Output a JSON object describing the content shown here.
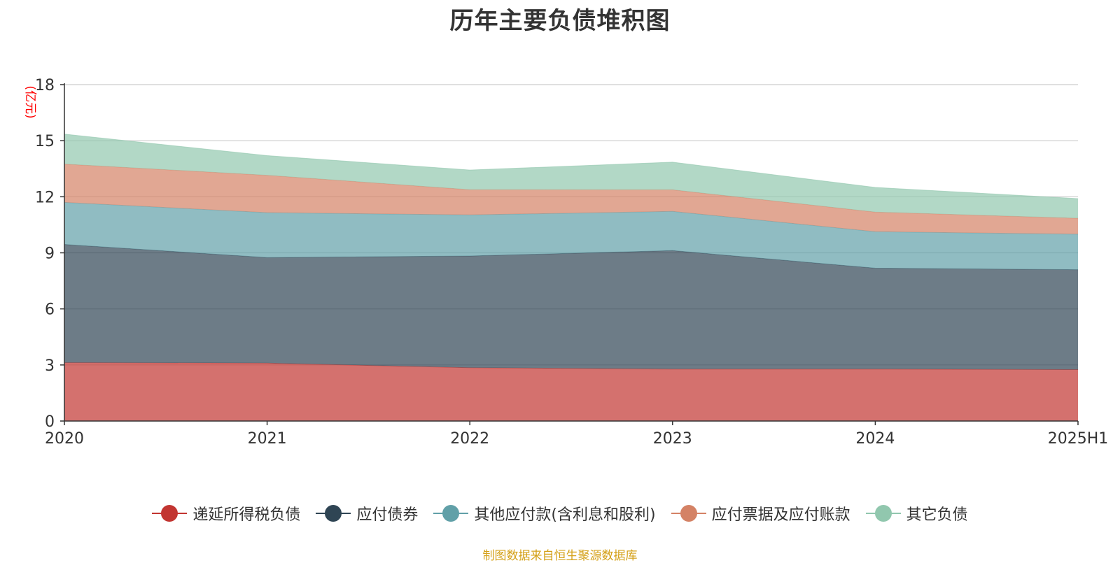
{
  "chart_data": {
    "type": "area",
    "stacked": true,
    "title": "历年主要负债堆积图",
    "unit_label": "(亿元)",
    "categories": [
      "2020",
      "2021",
      "2022",
      "2023",
      "2024",
      "2025H1"
    ],
    "ylim": [
      0,
      18
    ],
    "yticks": [
      0,
      3,
      6,
      9,
      12,
      15,
      18
    ],
    "grid": true,
    "legend_position": "bottom",
    "series": [
      {
        "name": "递延所得税负债",
        "color": "#c23531",
        "values": [
          3.12,
          3.1,
          2.85,
          2.78,
          2.78,
          2.75
        ]
      },
      {
        "name": "应付债券",
        "color": "#2f4554",
        "values": [
          6.33,
          5.65,
          5.98,
          6.34,
          5.4,
          5.35
        ]
      },
      {
        "name": "其他应付款(含利息和股利)",
        "color": "#61a0a8",
        "values": [
          2.25,
          2.4,
          2.2,
          2.1,
          1.95,
          1.9
        ]
      },
      {
        "name": "应付票据及应付账款",
        "color": "#d48265",
        "values": [
          2.05,
          2.0,
          1.35,
          1.15,
          1.05,
          0.85
        ]
      },
      {
        "name": "其它负债",
        "color": "#91c7ae",
        "values": [
          1.6,
          1.05,
          1.05,
          1.48,
          1.32,
          1.05
        ]
      }
    ]
  },
  "source_note": "制图数据来自恒生聚源数据库",
  "colors": {
    "title": "#333333",
    "axis": "#333333",
    "grid": "#cccccc",
    "unit_label": "#ff0000",
    "source_note": "#d4a017"
  }
}
